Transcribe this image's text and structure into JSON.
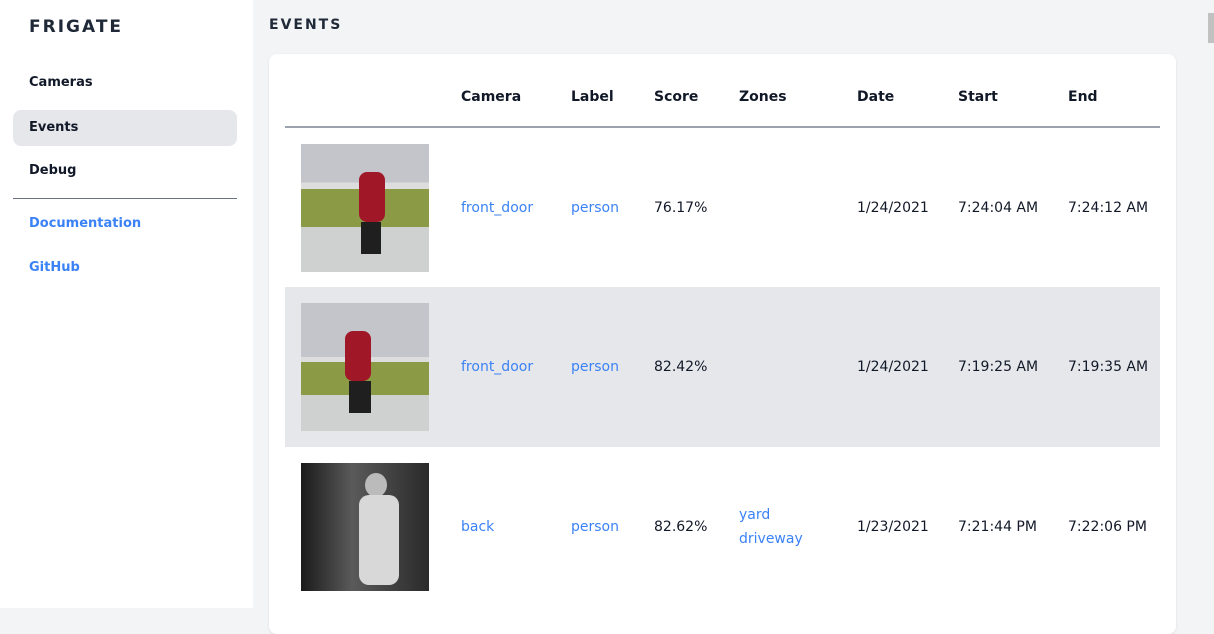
{
  "sidebar": {
    "brand": "FRIGATE",
    "items": [
      {
        "label": "Cameras"
      },
      {
        "label": "Events",
        "active": true
      },
      {
        "label": "Debug"
      }
    ],
    "links": [
      {
        "label": "Documentation"
      },
      {
        "label": "GitHub"
      }
    ]
  },
  "main": {
    "title": "EVENTS",
    "columns": [
      "",
      "Camera",
      "Label",
      "Score",
      "Zones",
      "Date",
      "Start",
      "End"
    ],
    "rows": [
      {
        "camera": "front_door",
        "label": "person",
        "score": "76.17%",
        "zones": [
          "",
          ""
        ],
        "date": "1/24/2021",
        "start": "7:24:04 AM",
        "end": "7:24:12 AM"
      },
      {
        "camera": "front_door",
        "label": "person",
        "score": "82.42%",
        "zones": [
          "",
          ""
        ],
        "date": "1/24/2021",
        "start": "7:19:25 AM",
        "end": "7:19:35 AM"
      },
      {
        "camera": "back",
        "label": "person",
        "score": "82.62%",
        "zones": [
          "yard",
          "driveway"
        ],
        "date": "1/23/2021",
        "start": "7:21:44 PM",
        "end": "7:22:06 PM"
      }
    ]
  },
  "colors": {
    "accent": "#3b82f6",
    "active_bg": "#e5e7eb"
  }
}
